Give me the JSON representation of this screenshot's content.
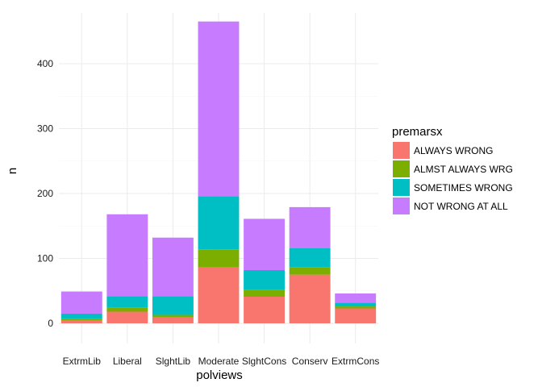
{
  "chart_data": {
    "type": "bar",
    "stacked": true,
    "xlabel": "polviews",
    "ylabel": "n",
    "ylim": [
      0,
      480
    ],
    "yticks": [
      0,
      100,
      200,
      300,
      400
    ],
    "categories": [
      "ExtrmLib",
      "Liberal",
      "SlghtLib",
      "Moderate",
      "SlghtCons",
      "Conserv",
      "ExtrmCons"
    ],
    "legend": {
      "title": "premarsx",
      "position": "right"
    },
    "grid": true,
    "series": [
      {
        "name": "ALWAYS WRONG",
        "color": "#F8766D",
        "values": [
          4,
          18,
          9,
          86,
          41,
          75,
          23
        ]
      },
      {
        "name": "ALMST ALWAYS WRG",
        "color": "#7CAE00",
        "values": [
          3,
          6,
          4,
          28,
          11,
          11,
          3
        ]
      },
      {
        "name": "SOMETIMES WRONG",
        "color": "#00BFC4",
        "values": [
          8,
          18,
          29,
          82,
          30,
          30,
          6
        ]
      },
      {
        "name": "NOT WRONG AT ALL",
        "color": "#C77CFF",
        "values": [
          34,
          126,
          90,
          269,
          79,
          63,
          14
        ]
      }
    ]
  }
}
